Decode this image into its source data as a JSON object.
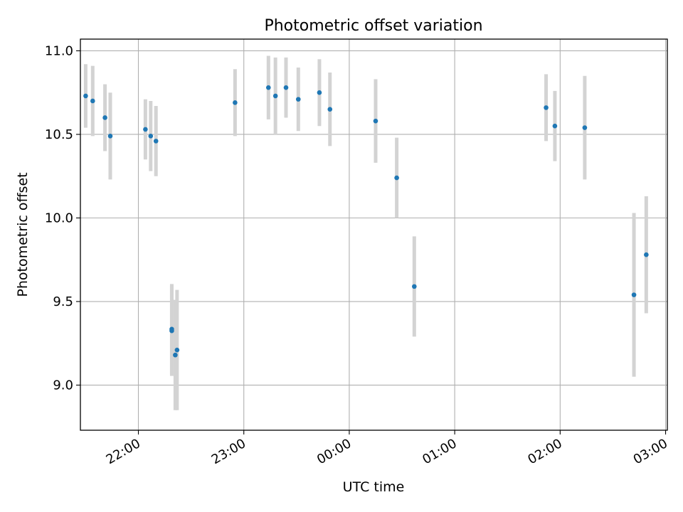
{
  "chart_data": {
    "type": "scatter",
    "title": "Photometric offset variation",
    "xlabel": "UTC time",
    "ylabel": "Photometric offset",
    "x_ticks": [
      "22:00",
      "23:00",
      "00:00",
      "01:00",
      "02:00",
      "03:00"
    ],
    "y_ticks": [
      "9.0",
      "9.5",
      "10.0",
      "10.5",
      "11.0"
    ],
    "xlim": [
      "21:27",
      "03:01"
    ],
    "ylim": [
      8.73,
      11.07
    ],
    "grid": true,
    "marker_color": "#1f77b4",
    "errorbar_color": "#d3d3d3",
    "series": [
      {
        "points": [
          {
            "x": "21:30",
            "y": 10.73,
            "err": 0.19
          },
          {
            "x": "21:34",
            "y": 10.7,
            "err": 0.21
          },
          {
            "x": "21:41",
            "y": 10.6,
            "err": 0.2
          },
          {
            "x": "21:44",
            "y": 10.49,
            "err": 0.26
          },
          {
            "x": "22:04",
            "y": 10.53,
            "err": 0.18
          },
          {
            "x": "22:07",
            "y": 10.49,
            "err": 0.21
          },
          {
            "x": "22:10",
            "y": 10.46,
            "err": 0.21
          },
          {
            "x": "22:19",
            "y": 9.335,
            "err": 0.27
          },
          {
            "x": "22:19",
            "y": 9.325,
            "err": 0.27
          },
          {
            "x": "22:21",
            "y": 9.18,
            "err": 0.33
          },
          {
            "x": "22:22",
            "y": 9.21,
            "err": 0.36
          },
          {
            "x": "22:55",
            "y": 10.69,
            "err": 0.2
          },
          {
            "x": "23:14",
            "y": 10.78,
            "err": 0.19
          },
          {
            "x": "23:18",
            "y": 10.73,
            "err": 0.23
          },
          {
            "x": "23:24",
            "y": 10.78,
            "err": 0.18
          },
          {
            "x": "23:31",
            "y": 10.71,
            "err": 0.19
          },
          {
            "x": "23:43",
            "y": 10.75,
            "err": 0.2
          },
          {
            "x": "23:49",
            "y": 10.65,
            "err": 0.22
          },
          {
            "x": "00:15",
            "y": 10.58,
            "err": 0.25
          },
          {
            "x": "00:27",
            "y": 10.24,
            "err": 0.24
          },
          {
            "x": "00:37",
            "y": 9.59,
            "err": 0.3
          },
          {
            "x": "01:52",
            "y": 10.66,
            "err": 0.2
          },
          {
            "x": "01:57",
            "y": 10.55,
            "err": 0.21
          },
          {
            "x": "02:14",
            "y": 10.54,
            "err": 0.31
          },
          {
            "x": "02:42",
            "y": 9.54,
            "err": 0.49
          },
          {
            "x": "02:49",
            "y": 9.78,
            "err": 0.35
          }
        ]
      }
    ]
  }
}
